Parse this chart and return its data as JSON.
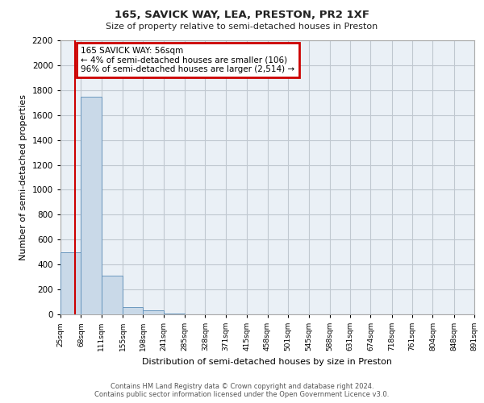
{
  "title1": "165, SAVICK WAY, LEA, PRESTON, PR2 1XF",
  "title2": "Size of property relative to semi-detached houses in Preston",
  "xlabel": "Distribution of semi-detached houses by size in Preston",
  "ylabel": "Number of semi-detached properties",
  "footer1": "Contains HM Land Registry data © Crown copyright and database right 2024.",
  "footer2": "Contains public sector information licensed under the Open Government Licence v3.0.",
  "annotation_line1": "165 SAVICK WAY: 56sqm",
  "annotation_line2": "← 4% of semi-detached houses are smaller (106)",
  "annotation_line3": "96% of semi-detached houses are larger (2,514) →",
  "property_size": 56,
  "bar_left_edges": [
    25,
    68,
    111,
    155,
    198,
    241,
    285,
    328,
    371,
    415,
    458,
    501,
    545,
    588,
    631,
    674,
    718,
    761,
    804,
    848
  ],
  "bar_widths": [
    43,
    43,
    44,
    43,
    43,
    44,
    43,
    43,
    44,
    43,
    43,
    44,
    43,
    43,
    43,
    44,
    43,
    43,
    44,
    43
  ],
  "bar_heights": [
    500,
    1750,
    310,
    60,
    30,
    5,
    2,
    0,
    0,
    0,
    0,
    0,
    0,
    0,
    0,
    0,
    0,
    0,
    0,
    0
  ],
  "bar_color": "#c9d9e8",
  "bar_edge_color": "#5b8db8",
  "vline_color": "#cc0000",
  "annotation_box_color": "#cc0000",
  "grid_color": "#c0c8d0",
  "bg_color": "#eaf0f6",
  "ylim": [
    0,
    2200
  ],
  "yticks": [
    0,
    200,
    400,
    600,
    800,
    1000,
    1200,
    1400,
    1600,
    1800,
    2000,
    2200
  ],
  "xtick_labels": [
    "25sqm",
    "68sqm",
    "111sqm",
    "155sqm",
    "198sqm",
    "241sqm",
    "285sqm",
    "328sqm",
    "371sqm",
    "415sqm",
    "458sqm",
    "501sqm",
    "545sqm",
    "588sqm",
    "631sqm",
    "674sqm",
    "718sqm",
    "761sqm",
    "804sqm",
    "848sqm",
    "891sqm"
  ]
}
